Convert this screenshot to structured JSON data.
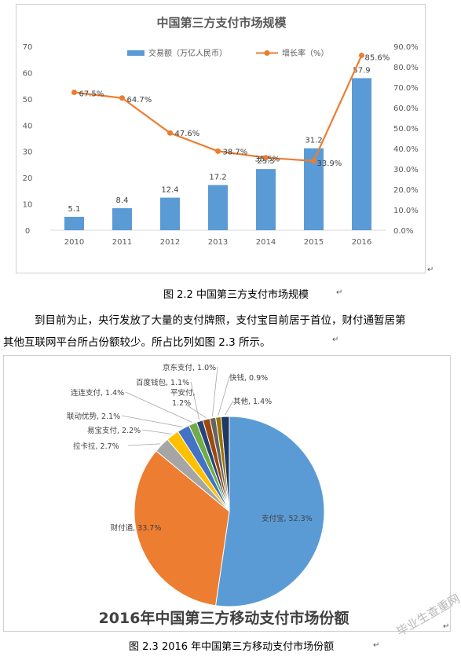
{
  "chart_data": [
    {
      "type": "bar+line",
      "title": "中国第三方支付市场规模",
      "categories": [
        "2010",
        "2011",
        "2012",
        "2013",
        "2014",
        "2015",
        "2016"
      ],
      "series": [
        {
          "name": "交易额（万亿人民币）",
          "type": "bar",
          "axis": "left",
          "color": "#5b9bd5",
          "values": [
            5.1,
            8.4,
            12.4,
            17.2,
            23.3,
            31.2,
            57.9
          ],
          "labels": [
            "5.1",
            "8.4",
            "12.4",
            "17.2",
            "23.3",
            "31.2",
            "57.9"
          ]
        },
        {
          "name": "增长率（%）",
          "type": "line",
          "axis": "right",
          "color": "#ed7d31",
          "values": [
            67.5,
            64.7,
            47.6,
            38.7,
            35.5,
            33.9,
            85.6
          ],
          "labels": [
            "67.5%",
            "64.7%",
            "47.6%",
            "38.7%",
            "35.5%",
            "33.9%",
            "85.6%"
          ]
        }
      ],
      "y_left": {
        "min": 0,
        "max": 70,
        "ticks": [
          "0",
          "10",
          "20",
          "30",
          "40",
          "50",
          "60",
          "70"
        ]
      },
      "y_right": {
        "min": 0,
        "max": 90,
        "ticks": [
          "0.0%",
          "10.0%",
          "20.0%",
          "30.0%",
          "40.0%",
          "50.0%",
          "60.0%",
          "70.0%",
          "80.0%",
          "90.0%"
        ]
      },
      "legend": "top-center",
      "grid": false
    },
    {
      "type": "pie",
      "title": "2016年中国第三方移动支付市场份额",
      "slices": [
        {
          "name": "支付宝",
          "label": "支付宝, 52.3%",
          "value": 52.3,
          "color": "#5b9bd5"
        },
        {
          "name": "财付通",
          "label": "财付通, 33.7%",
          "value": 33.7,
          "color": "#ed7d31"
        },
        {
          "name": "拉卡拉",
          "label": "拉卡拉, 2.7%",
          "value": 2.7,
          "color": "#a5a5a5"
        },
        {
          "name": "易宝支付",
          "label": "易宝支付, 2.2%",
          "value": 2.2,
          "color": "#ffc000"
        },
        {
          "name": "联动优势",
          "label": "联动优势, 2.1%",
          "value": 2.1,
          "color": "#4472c4"
        },
        {
          "name": "连连支付",
          "label": "连连支付, 1.4%",
          "value": 1.4,
          "color": "#70ad47"
        },
        {
          "name": "百度钱包",
          "label": "百度钱包, 1.1%",
          "value": 1.1,
          "color": "#264478"
        },
        {
          "name": "平安付",
          "label": "平安付, 1.2%",
          "value": 1.2,
          "color": "#9e480e"
        },
        {
          "name": "京东支付",
          "label": "京东支付, 1.0%",
          "value": 1.0,
          "color": "#636363"
        },
        {
          "name": "快钱",
          "label": "快钱, 0.9%",
          "value": 0.9,
          "color": "#997300"
        },
        {
          "name": "其他",
          "label": "其他, 1.4%",
          "value": 1.4,
          "color": "#1f3864"
        }
      ]
    }
  ],
  "doc": {
    "caption1": "图 2.2  中国第三方支付市场规模",
    "para_line1": "到目前为止，央行发放了大量的支付牌照，支付宝目前居于首位，财付通暂居第",
    "para_line2": "其他互联网平台所占份额较少。所占比列如图 2.3 所示。",
    "caption2": "图 2.3  2016 年中国第三方移动支付市场份额",
    "return_mark": "↵",
    "watermark": "毕业生查重网"
  }
}
